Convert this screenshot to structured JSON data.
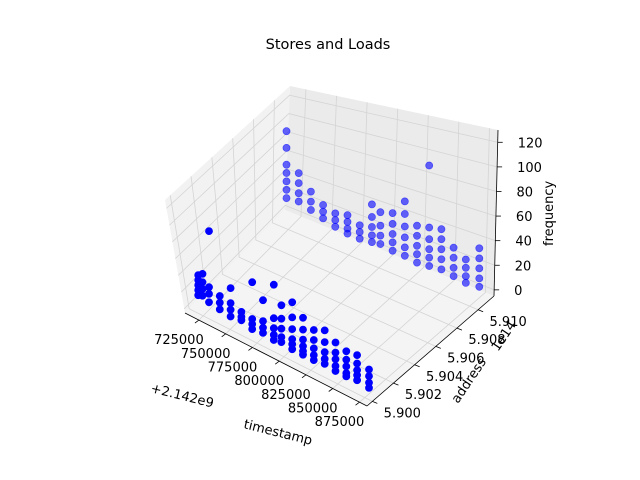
{
  "chart_data": {
    "type": "scatter",
    "projection": "3d",
    "title": "Stores and Loads",
    "xlabel": "timestamp",
    "ylabel": "address",
    "zlabel": "frequency",
    "x_offset_label": "+2.142e9",
    "y_offset_label": "1e14",
    "xlim": [
      712000,
      882000
    ],
    "ylim": [
      5.8995,
      5.9115
    ],
    "zlim": [
      -5,
      130
    ],
    "x_ticks": [
      725000,
      750000,
      775000,
      800000,
      825000,
      850000,
      875000
    ],
    "x_tick_labels": [
      "725000",
      "750000",
      "775000",
      "800000",
      "825000",
      "850000",
      "875000"
    ],
    "y_ticks": [
      5.9,
      5.902,
      5.904,
      5.906,
      5.908,
      5.91
    ],
    "y_tick_labels": [
      "5.900",
      "5.902",
      "5.904",
      "5.906",
      "5.908",
      "5.910"
    ],
    "z_ticks": [
      0,
      20,
      40,
      60,
      80,
      100,
      120
    ],
    "z_tick_labels": [
      "0",
      "20",
      "40",
      "60",
      "80",
      "100",
      "120"
    ],
    "grid": true,
    "marker_color": "#0000ff",
    "series": [
      {
        "points": [
          [
            718000,
            5.9003,
            12
          ],
          [
            718000,
            5.9003,
            18
          ],
          [
            718000,
            5.9003,
            24
          ],
          [
            718000,
            5.9003,
            30
          ],
          [
            718000,
            5.9003,
            36
          ],
          [
            722000,
            5.9003,
            14
          ],
          [
            722000,
            5.9003,
            22
          ],
          [
            722000,
            5.9003,
            30
          ],
          [
            722000,
            5.9003,
            40
          ],
          [
            728000,
            5.9003,
            10
          ],
          [
            728000,
            5.9003,
            20
          ],
          [
            728000,
            5.9003,
            28
          ],
          [
            728000,
            5.9003,
            95
          ],
          [
            738000,
            5.9003,
            8
          ],
          [
            738000,
            5.9003,
            16
          ],
          [
            738000,
            5.9003,
            24
          ],
          [
            748000,
            5.9003,
            6
          ],
          [
            748000,
            5.9003,
            14
          ],
          [
            748000,
            5.9003,
            22
          ],
          [
            748000,
            5.9003,
            40
          ],
          [
            758000,
            5.9003,
            8
          ],
          [
            758000,
            5.9003,
            12
          ],
          [
            758000,
            5.9003,
            18
          ],
          [
            768000,
            5.9003,
            4
          ],
          [
            768000,
            5.9003,
            10
          ],
          [
            768000,
            5.9003,
            16
          ],
          [
            768000,
            5.9003,
            60
          ],
          [
            778000,
            5.9003,
            6
          ],
          [
            778000,
            5.9003,
            12
          ],
          [
            778000,
            5.9003,
            20
          ],
          [
            778000,
            5.9003,
            45
          ],
          [
            788000,
            5.9003,
            4
          ],
          [
            788000,
            5.9003,
            10
          ],
          [
            788000,
            5.9003,
            18
          ],
          [
            788000,
            5.9003,
            30
          ],
          [
            788000,
            5.9003,
            70
          ],
          [
            795000,
            5.9003,
            6
          ],
          [
            795000,
            5.9003,
            12
          ],
          [
            795000,
            5.9003,
            22
          ],
          [
            795000,
            5.9003,
            34
          ],
          [
            795000,
            5.9003,
            50
          ],
          [
            805000,
            5.9003,
            4
          ],
          [
            805000,
            5.9003,
            10
          ],
          [
            805000,
            5.9003,
            16
          ],
          [
            805000,
            5.9003,
            28
          ],
          [
            805000,
            5.9003,
            42
          ],
          [
            805000,
            5.9003,
            60
          ],
          [
            815000,
            5.9003,
            4
          ],
          [
            815000,
            5.9003,
            8
          ],
          [
            815000,
            5.9003,
            14
          ],
          [
            815000,
            5.9003,
            22
          ],
          [
            815000,
            5.9003,
            34
          ],
          [
            815000,
            5.9003,
            48
          ],
          [
            825000,
            5.9003,
            4
          ],
          [
            825000,
            5.9003,
            10
          ],
          [
            825000,
            5.9003,
            18
          ],
          [
            825000,
            5.9003,
            28
          ],
          [
            825000,
            5.9003,
            40
          ],
          [
            835000,
            5.9003,
            6
          ],
          [
            835000,
            5.9003,
            12
          ],
          [
            835000,
            5.9003,
            20
          ],
          [
            835000,
            5.9003,
            32
          ],
          [
            835000,
            5.9003,
            46
          ],
          [
            845000,
            5.9003,
            4
          ],
          [
            845000,
            5.9003,
            10
          ],
          [
            845000,
            5.9003,
            18
          ],
          [
            845000,
            5.9003,
            26
          ],
          [
            845000,
            5.9003,
            38
          ],
          [
            855000,
            5.9003,
            4
          ],
          [
            855000,
            5.9003,
            8
          ],
          [
            855000,
            5.9003,
            16
          ],
          [
            855000,
            5.9003,
            24
          ],
          [
            855000,
            5.9003,
            34
          ],
          [
            865000,
            5.9003,
            6
          ],
          [
            865000,
            5.9003,
            12
          ],
          [
            865000,
            5.9003,
            18
          ],
          [
            865000,
            5.9003,
            26
          ],
          [
            865000,
            5.9003,
            36
          ],
          [
            876000,
            5.9003,
            4
          ],
          [
            876000,
            5.9003,
            10
          ],
          [
            876000,
            5.9003,
            18
          ],
          [
            876000,
            5.9003,
            26
          ],
          [
            718000,
            5.9108,
            20
          ],
          [
            718000,
            5.9108,
            30
          ],
          [
            718000,
            5.9108,
            40
          ],
          [
            718000,
            5.9108,
            50
          ],
          [
            718000,
            5.9108,
            60
          ],
          [
            718000,
            5.9108,
            80
          ],
          [
            718000,
            5.9108,
            100
          ],
          [
            728000,
            5.9108,
            22
          ],
          [
            728000,
            5.9108,
            32
          ],
          [
            728000,
            5.9108,
            44
          ],
          [
            728000,
            5.9108,
            56
          ],
          [
            738000,
            5.9108,
            18
          ],
          [
            738000,
            5.9108,
            28
          ],
          [
            738000,
            5.9108,
            40
          ],
          [
            748000,
            5.9108,
            14
          ],
          [
            748000,
            5.9108,
            22
          ],
          [
            748000,
            5.9108,
            30
          ],
          [
            758000,
            5.9108,
            10
          ],
          [
            758000,
            5.9108,
            18
          ],
          [
            758000,
            5.9108,
            26
          ],
          [
            768000,
            5.9108,
            8
          ],
          [
            768000,
            5.9108,
            14
          ],
          [
            768000,
            5.9108,
            22
          ],
          [
            768000,
            5.9108,
            30
          ],
          [
            778000,
            5.9108,
            8
          ],
          [
            778000,
            5.9108,
            16
          ],
          [
            778000,
            5.9108,
            24
          ],
          [
            788000,
            5.9108,
            10
          ],
          [
            788000,
            5.9108,
            18
          ],
          [
            788000,
            5.9108,
            28
          ],
          [
            788000,
            5.9108,
            40
          ],
          [
            788000,
            5.9108,
            55
          ],
          [
            795000,
            5.9108,
            12
          ],
          [
            795000,
            5.9108,
            22
          ],
          [
            795000,
            5.9108,
            34
          ],
          [
            795000,
            5.9108,
            50
          ],
          [
            805000,
            5.9108,
            10
          ],
          [
            805000,
            5.9108,
            20
          ],
          [
            805000,
            5.9108,
            30
          ],
          [
            805000,
            5.9108,
            42
          ],
          [
            805000,
            5.9108,
            55
          ],
          [
            815000,
            5.9108,
            10
          ],
          [
            815000,
            5.9108,
            20
          ],
          [
            815000,
            5.9108,
            32
          ],
          [
            815000,
            5.9108,
            45
          ],
          [
            815000,
            5.9108,
            60
          ],
          [
            815000,
            5.9108,
            75
          ],
          [
            825000,
            5.9108,
            8
          ],
          [
            825000,
            5.9108,
            18
          ],
          [
            825000,
            5.9108,
            28
          ],
          [
            825000,
            5.9108,
            40
          ],
          [
            825000,
            5.9108,
            52
          ],
          [
            835000,
            5.9108,
            10
          ],
          [
            835000,
            5.9108,
            20
          ],
          [
            835000,
            5.9108,
            30
          ],
          [
            835000,
            5.9108,
            42
          ],
          [
            835000,
            5.9108,
            56
          ],
          [
            835000,
            5.9108,
            130
          ],
          [
            845000,
            5.9108,
            12
          ],
          [
            845000,
            5.9108,
            24
          ],
          [
            845000,
            5.9108,
            36
          ],
          [
            845000,
            5.9108,
            48
          ],
          [
            845000,
            5.9108,
            60
          ],
          [
            855000,
            5.9108,
            10
          ],
          [
            855000,
            5.9108,
            20
          ],
          [
            855000,
            5.9108,
            32
          ],
          [
            855000,
            5.9108,
            44
          ],
          [
            865000,
            5.9108,
            8
          ],
          [
            865000,
            5.9108,
            16
          ],
          [
            865000,
            5.9108,
            26
          ],
          [
            865000,
            5.9108,
            36
          ],
          [
            876000,
            5.9108,
            10
          ],
          [
            876000,
            5.9108,
            20
          ],
          [
            876000,
            5.9108,
            32
          ],
          [
            876000,
            5.9108,
            44
          ],
          [
            876000,
            5.9108,
            56
          ]
        ]
      }
    ]
  }
}
